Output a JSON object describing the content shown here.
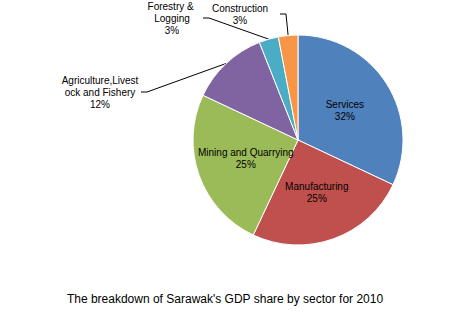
{
  "chart_data": {
    "type": "pie",
    "title": "The breakdown of Sarawak's GDP share by sector for 2010",
    "categories": [
      "Services",
      "Manufacturing",
      "Mining and Quarrying",
      "Agriculture,Livestock and Fishery",
      "Forestry & Logging",
      "Construction"
    ],
    "values": [
      32,
      25,
      25,
      12,
      3,
      3
    ],
    "value_labels": [
      "32%",
      "25%",
      "25%",
      "12%",
      "3%",
      "3%"
    ],
    "colors": [
      "#4f81bd",
      "#c0504d",
      "#9bbb59",
      "#8064a2",
      "#4bacc6",
      "#f79646"
    ],
    "data_labels": true
  }
}
